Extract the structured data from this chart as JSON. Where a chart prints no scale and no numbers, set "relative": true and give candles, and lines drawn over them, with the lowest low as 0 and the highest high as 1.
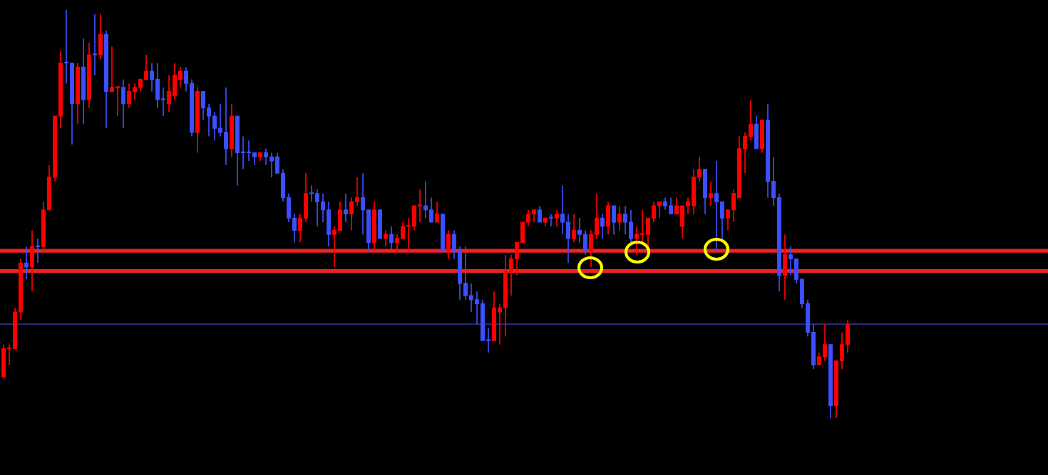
{
  "chart_data": {
    "type": "candlestick",
    "relative": true,
    "categories": [
      null,
      null,
      null,
      null,
      null,
      null,
      null,
      null,
      null,
      null,
      null,
      null,
      null,
      null,
      null,
      null,
      null,
      null,
      null,
      null,
      null,
      null,
      null,
      null,
      null,
      null,
      null,
      null,
      null,
      null,
      null,
      null,
      null,
      null,
      null,
      null,
      null,
      null,
      null,
      null,
      null,
      null,
      null,
      null,
      null,
      null,
      null,
      null,
      null,
      null,
      null,
      null,
      null,
      null,
      null,
      null,
      null,
      null,
      null,
      null,
      null,
      null,
      null,
      null,
      null,
      null,
      null,
      null,
      null,
      null,
      null,
      null,
      null,
      null,
      null,
      null,
      null,
      null,
      null,
      null,
      null,
      null,
      null,
      null,
      null,
      null,
      null,
      null,
      null,
      null,
      null,
      null,
      null,
      null,
      null,
      null,
      null,
      null,
      null,
      null,
      null,
      null,
      null,
      null,
      null,
      null,
      null,
      null,
      null,
      null,
      null,
      null,
      null,
      null,
      null,
      null,
      null,
      null,
      null,
      null,
      null,
      null,
      null,
      null,
      null,
      null,
      null,
      null,
      null,
      null,
      null,
      null,
      null,
      null,
      null,
      null,
      null,
      null,
      null,
      null,
      null,
      null,
      null,
      null,
      null,
      null,
      null,
      null,
      null
    ],
    "ohlc": [
      [
        0.1,
        0.18,
        0.1,
        0.17
      ],
      [
        0.17,
        0.18,
        0.13,
        0.17
      ],
      [
        0.17,
        0.27,
        0.17,
        0.26
      ],
      [
        0.26,
        0.39,
        0.24,
        0.38
      ],
      [
        0.38,
        0.42,
        0.34,
        0.37
      ],
      [
        0.37,
        0.46,
        0.31,
        0.42
      ],
      [
        0.42,
        0.44,
        0.38,
        0.42
      ],
      [
        0.42,
        0.53,
        0.41,
        0.51
      ],
      [
        0.51,
        0.62,
        0.51,
        0.59
      ],
      [
        0.59,
        0.74,
        0.58,
        0.74
      ],
      [
        0.74,
        0.9,
        0.71,
        0.87
      ],
      [
        0.87,
        1.0,
        0.82,
        0.87
      ],
      [
        0.87,
        0.87,
        0.67,
        0.77
      ],
      [
        0.77,
        0.87,
        0.72,
        0.86
      ],
      [
        0.86,
        0.93,
        0.72,
        0.78
      ],
      [
        0.78,
        0.92,
        0.76,
        0.89
      ],
      [
        0.89,
        0.99,
        0.84,
        0.89
      ],
      [
        0.89,
        0.99,
        0.88,
        0.94
      ],
      [
        0.94,
        0.95,
        0.71,
        0.8
      ],
      [
        0.8,
        0.91,
        0.8,
        0.81
      ],
      [
        0.81,
        0.81,
        0.74,
        0.81
      ],
      [
        0.81,
        0.83,
        0.71,
        0.77
      ],
      [
        0.77,
        0.82,
        0.76,
        0.8
      ],
      [
        0.8,
        0.82,
        0.78,
        0.81
      ],
      [
        0.81,
        0.83,
        0.8,
        0.83
      ],
      [
        0.83,
        0.89,
        0.83,
        0.85
      ],
      [
        0.85,
        0.87,
        0.8,
        0.83
      ],
      [
        0.83,
        0.87,
        0.76,
        0.78
      ],
      [
        0.78,
        0.81,
        0.74,
        0.78
      ],
      [
        0.77,
        0.84,
        0.75,
        0.8
      ],
      [
        0.79,
        0.87,
        0.78,
        0.84
      ],
      [
        0.83,
        0.86,
        0.81,
        0.85
      ],
      [
        0.85,
        0.86,
        0.8,
        0.82
      ],
      [
        0.82,
        0.83,
        0.69,
        0.7
      ],
      [
        0.7,
        0.81,
        0.65,
        0.8
      ],
      [
        0.8,
        0.8,
        0.73,
        0.76
      ],
      [
        0.76,
        0.77,
        0.69,
        0.74
      ],
      [
        0.74,
        0.75,
        0.68,
        0.71
      ],
      [
        0.71,
        0.77,
        0.69,
        0.7
      ],
      [
        0.7,
        0.81,
        0.62,
        0.66
      ],
      [
        0.66,
        0.77,
        0.64,
        0.74
      ],
      [
        0.74,
        0.74,
        0.57,
        0.65
      ],
      [
        0.65,
        0.69,
        0.61,
        0.65
      ],
      [
        0.65,
        0.68,
        0.63,
        0.65
      ],
      [
        0.65,
        0.65,
        0.62,
        0.64
      ],
      [
        0.64,
        0.65,
        0.63,
        0.65
      ],
      [
        0.65,
        0.66,
        0.62,
        0.64
      ],
      [
        0.64,
        0.65,
        0.59,
        0.63
      ],
      [
        0.64,
        0.65,
        0.6,
        0.6
      ],
      [
        0.6,
        0.61,
        0.53,
        0.54
      ],
      [
        0.54,
        0.55,
        0.48,
        0.49
      ],
      [
        0.49,
        0.5,
        0.43,
        0.46
      ],
      [
        0.46,
        0.5,
        0.43,
        0.49
      ],
      [
        0.49,
        0.6,
        0.48,
        0.55
      ],
      [
        0.55,
        0.57,
        0.53,
        0.55
      ],
      [
        0.55,
        0.56,
        0.47,
        0.53
      ],
      [
        0.53,
        0.55,
        0.48,
        0.51
      ],
      [
        0.51,
        0.53,
        0.42,
        0.45
      ],
      [
        0.45,
        0.47,
        0.37,
        0.46
      ],
      [
        0.46,
        0.53,
        0.46,
        0.51
      ],
      [
        0.51,
        0.55,
        0.48,
        0.5
      ],
      [
        0.5,
        0.54,
        0.46,
        0.53
      ],
      [
        0.53,
        0.59,
        0.52,
        0.54
      ],
      [
        0.54,
        0.6,
        0.45,
        0.51
      ],
      [
        0.51,
        0.51,
        0.41,
        0.43
      ],
      [
        0.43,
        0.53,
        0.41,
        0.51
      ],
      [
        0.51,
        0.51,
        0.44,
        0.44
      ],
      [
        0.44,
        0.46,
        0.42,
        0.45
      ],
      [
        0.45,
        0.47,
        0.41,
        0.43
      ],
      [
        0.43,
        0.45,
        0.41,
        0.44
      ],
      [
        0.44,
        0.48,
        0.44,
        0.47
      ],
      [
        0.47,
        0.49,
        0.41,
        0.47
      ],
      [
        0.47,
        0.52,
        0.46,
        0.52
      ],
      [
        0.52,
        0.56,
        0.48,
        0.52
      ],
      [
        0.52,
        0.58,
        0.49,
        0.51
      ],
      [
        0.51,
        0.54,
        0.48,
        0.48
      ],
      [
        0.48,
        0.53,
        0.48,
        0.5
      ],
      [
        0.5,
        0.5,
        0.41,
        0.41
      ],
      [
        0.41,
        0.46,
        0.39,
        0.45
      ],
      [
        0.45,
        0.46,
        0.39,
        0.41
      ],
      [
        0.41,
        0.42,
        0.29,
        0.33
      ],
      [
        0.33,
        0.42,
        0.29,
        0.3
      ],
      [
        0.3,
        0.33,
        0.26,
        0.29
      ],
      [
        0.29,
        0.31,
        0.23,
        0.28
      ],
      [
        0.28,
        0.29,
        0.19,
        0.19
      ],
      [
        0.19,
        0.22,
        0.16,
        0.19
      ],
      [
        0.19,
        0.31,
        0.19,
        0.27
      ],
      [
        0.26,
        0.28,
        0.18,
        0.27
      ],
      [
        0.27,
        0.4,
        0.2,
        0.36
      ],
      [
        0.36,
        0.4,
        0.3,
        0.39
      ],
      [
        0.39,
        0.43,
        0.35,
        0.43
      ],
      [
        0.43,
        0.48,
        0.43,
        0.48
      ],
      [
        0.48,
        0.51,
        0.47,
        0.5
      ],
      [
        0.5,
        0.51,
        0.48,
        0.51
      ],
      [
        0.51,
        0.52,
        0.48,
        0.48
      ],
      [
        0.48,
        0.49,
        0.47,
        0.49
      ],
      [
        0.49,
        0.5,
        0.47,
        0.49
      ],
      [
        0.49,
        0.51,
        0.47,
        0.5
      ],
      [
        0.5,
        0.57,
        0.45,
        0.48
      ],
      [
        0.48,
        0.5,
        0.38,
        0.44
      ],
      [
        0.44,
        0.5,
        0.43,
        0.46
      ],
      [
        0.46,
        0.49,
        0.43,
        0.45
      ],
      [
        0.45,
        0.46,
        0.4,
        0.41
      ],
      [
        0.41,
        0.46,
        0.37,
        0.45
      ],
      [
        0.45,
        0.55,
        0.44,
        0.49
      ],
      [
        0.49,
        0.5,
        0.44,
        0.47
      ],
      [
        0.47,
        0.53,
        0.45,
        0.52
      ],
      [
        0.52,
        0.52,
        0.45,
        0.48
      ],
      [
        0.48,
        0.52,
        0.46,
        0.5
      ],
      [
        0.5,
        0.52,
        0.45,
        0.48
      ],
      [
        0.48,
        0.51,
        0.43,
        0.44
      ],
      [
        0.44,
        0.47,
        0.4,
        0.45
      ],
      [
        0.45,
        0.51,
        0.43,
        0.45
      ],
      [
        0.45,
        0.49,
        0.42,
        0.49
      ],
      [
        0.49,
        0.53,
        0.48,
        0.52
      ],
      [
        0.52,
        0.53,
        0.49,
        0.53
      ],
      [
        0.53,
        0.54,
        0.51,
        0.52
      ],
      [
        0.52,
        0.54,
        0.5,
        0.5
      ],
      [
        0.5,
        0.54,
        0.5,
        0.52
      ],
      [
        0.47,
        0.52,
        0.44,
        0.52
      ],
      [
        0.52,
        0.54,
        0.5,
        0.53
      ],
      [
        0.52,
        0.61,
        0.5,
        0.59
      ],
      [
        0.59,
        0.64,
        0.58,
        0.61
      ],
      [
        0.61,
        0.61,
        0.5,
        0.54
      ],
      [
        0.54,
        0.58,
        0.52,
        0.55
      ],
      [
        0.55,
        0.63,
        0.41,
        0.53
      ],
      [
        0.53,
        0.53,
        0.44,
        0.49
      ],
      [
        0.49,
        0.51,
        0.46,
        0.51
      ],
      [
        0.51,
        0.56,
        0.48,
        0.55
      ],
      [
        0.54,
        0.69,
        0.54,
        0.66
      ],
      [
        0.66,
        0.7,
        0.6,
        0.69
      ],
      [
        0.69,
        0.78,
        0.68,
        0.72
      ],
      [
        0.72,
        0.74,
        0.66,
        0.66
      ],
      [
        0.66,
        0.73,
        0.65,
        0.73
      ],
      [
        0.73,
        0.77,
        0.54,
        0.58
      ],
      [
        0.58,
        0.64,
        0.52,
        0.54
      ],
      [
        0.54,
        0.55,
        0.31,
        0.35
      ],
      [
        0.35,
        0.45,
        0.29,
        0.4
      ],
      [
        0.4,
        0.42,
        0.35,
        0.39
      ],
      [
        0.39,
        0.39,
        0.33,
        0.34
      ],
      [
        0.34,
        0.34,
        0.27,
        0.28
      ],
      [
        0.28,
        0.29,
        0.2,
        0.21
      ],
      [
        0.21,
        0.23,
        0.12,
        0.13
      ],
      [
        0.13,
        0.16,
        0.13,
        0.15
      ],
      [
        0.15,
        0.23,
        0.14,
        0.18
      ],
      [
        0.18,
        0.18,
        0.0,
        0.03
      ],
      [
        0.03,
        0.14,
        0.0,
        0.14
      ],
      [
        0.14,
        0.21,
        0.12,
        0.18
      ],
      [
        0.18,
        0.24,
        0.16,
        0.23
      ]
    ],
    "colors": [
      "#ff0000",
      "#ff0000",
      "#ff0000",
      "#ff0000",
      "#3c50ff",
      "#ff0000",
      "#3c50ff",
      "#ff0000",
      "#ff0000",
      "#ff0000",
      "#ff0000",
      "#3c50ff",
      "#3c50ff",
      "#ff0000",
      "#3c50ff",
      "#ff0000",
      "#3c50ff",
      "#ff0000",
      "#3c50ff",
      "#ff0000",
      "#ff0000",
      "#3c50ff",
      "#ff0000",
      "#ff0000",
      "#ff0000",
      "#ff0000",
      "#3c50ff",
      "#3c50ff",
      "#3c50ff",
      "#ff0000",
      "#ff0000",
      "#ff0000",
      "#3c50ff",
      "#3c50ff",
      "#ff0000",
      "#3c50ff",
      "#3c50ff",
      "#3c50ff",
      "#3c50ff",
      "#3c50ff",
      "#ff0000",
      "#3c50ff",
      "#3c50ff",
      "#3c50ff",
      "#3c50ff",
      "#ff0000",
      "#3c50ff",
      "#3c50ff",
      "#3c50ff",
      "#3c50ff",
      "#3c50ff",
      "#3c50ff",
      "#ff0000",
      "#ff0000",
      "#3c50ff",
      "#3c50ff",
      "#3c50ff",
      "#3c50ff",
      "#ff0000",
      "#ff0000",
      "#3c50ff",
      "#ff0000",
      "#ff0000",
      "#3c50ff",
      "#3c50ff",
      "#ff0000",
      "#3c50ff",
      "#ff0000",
      "#3c50ff",
      "#ff0000",
      "#ff0000",
      "#ff0000",
      "#ff0000",
      "#ff0000",
      "#3c50ff",
      "#3c50ff",
      "#ff0000",
      "#3c50ff",
      "#ff0000",
      "#3c50ff",
      "#3c50ff",
      "#3c50ff",
      "#3c50ff",
      "#3c50ff",
      "#3c50ff",
      "#3c50ff",
      "#ff0000",
      "#ff0000",
      "#ff0000",
      "#ff0000",
      "#ff0000",
      "#ff0000",
      "#ff0000",
      "#ff0000",
      "#3c50ff",
      "#ff0000",
      "#3c50ff",
      "#ff0000",
      "#3c50ff",
      "#3c50ff",
      "#ff0000",
      "#3c50ff",
      "#3c50ff",
      "#ff0000",
      "#ff0000",
      "#3c50ff",
      "#ff0000",
      "#3c50ff",
      "#ff0000",
      "#3c50ff",
      "#3c50ff",
      "#ff0000",
      "#ff0000",
      "#ff0000",
      "#ff0000",
      "#ff0000",
      "#3c50ff",
      "#3c50ff",
      "#ff0000",
      "#ff0000",
      "#ff0000",
      "#ff0000",
      "#ff0000",
      "#3c50ff",
      "#ff0000",
      "#3c50ff",
      "#3c50ff",
      "#ff0000",
      "#ff0000",
      "#ff0000",
      "#ff0000",
      "#ff0000",
      "#3c50ff",
      "#ff0000",
      "#3c50ff",
      "#3c50ff",
      "#3c50ff",
      "#ff0000",
      "#3c50ff",
      "#3c50ff",
      "#3c50ff",
      "#3c50ff",
      "#3c50ff",
      "#ff0000",
      "#ff0000",
      "#3c50ff",
      "#ff0000",
      "#ff0000",
      "#ff0000"
    ],
    "ref_lines": [
      {
        "axis": "y",
        "value": 0.41,
        "color": "#ee2222"
      },
      {
        "axis": "y",
        "value": 0.36,
        "color": "#ee2222"
      },
      {
        "axis": "y",
        "value": 0.23,
        "color": "#4040b0"
      }
    ]
  }
}
